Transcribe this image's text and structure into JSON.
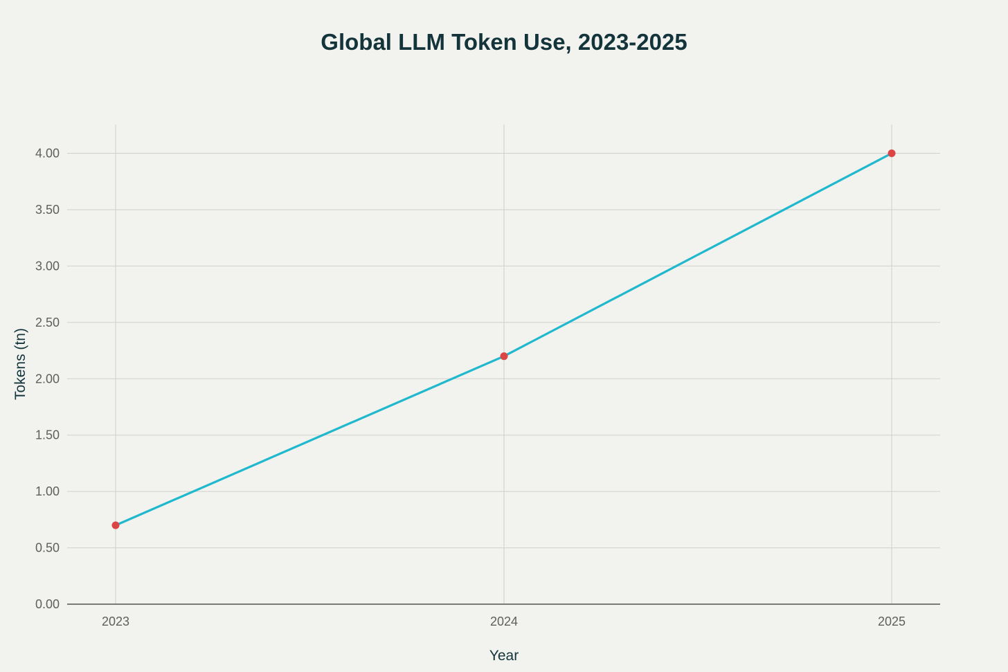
{
  "chart_data": {
    "type": "line",
    "title": "Global LLM Token Use, 2023-2025",
    "xlabel": "Year",
    "ylabel": "Tokens (tn)",
    "x": [
      "2023",
      "2024",
      "2025"
    ],
    "series": [
      {
        "values": [
          0.7,
          2.2,
          4.0
        ]
      }
    ],
    "ylim": [
      0,
      4.25
    ],
    "yticks": [
      "0.00",
      "0.50",
      "1.00",
      "1.50",
      "2.00",
      "2.50",
      "3.00",
      "3.50",
      "4.00"
    ],
    "grid": true,
    "legend": "none",
    "colors": {
      "background": "#f2f2ee",
      "line": "#1fb8cd",
      "marker": "#db4545",
      "title": "#13343b"
    }
  }
}
